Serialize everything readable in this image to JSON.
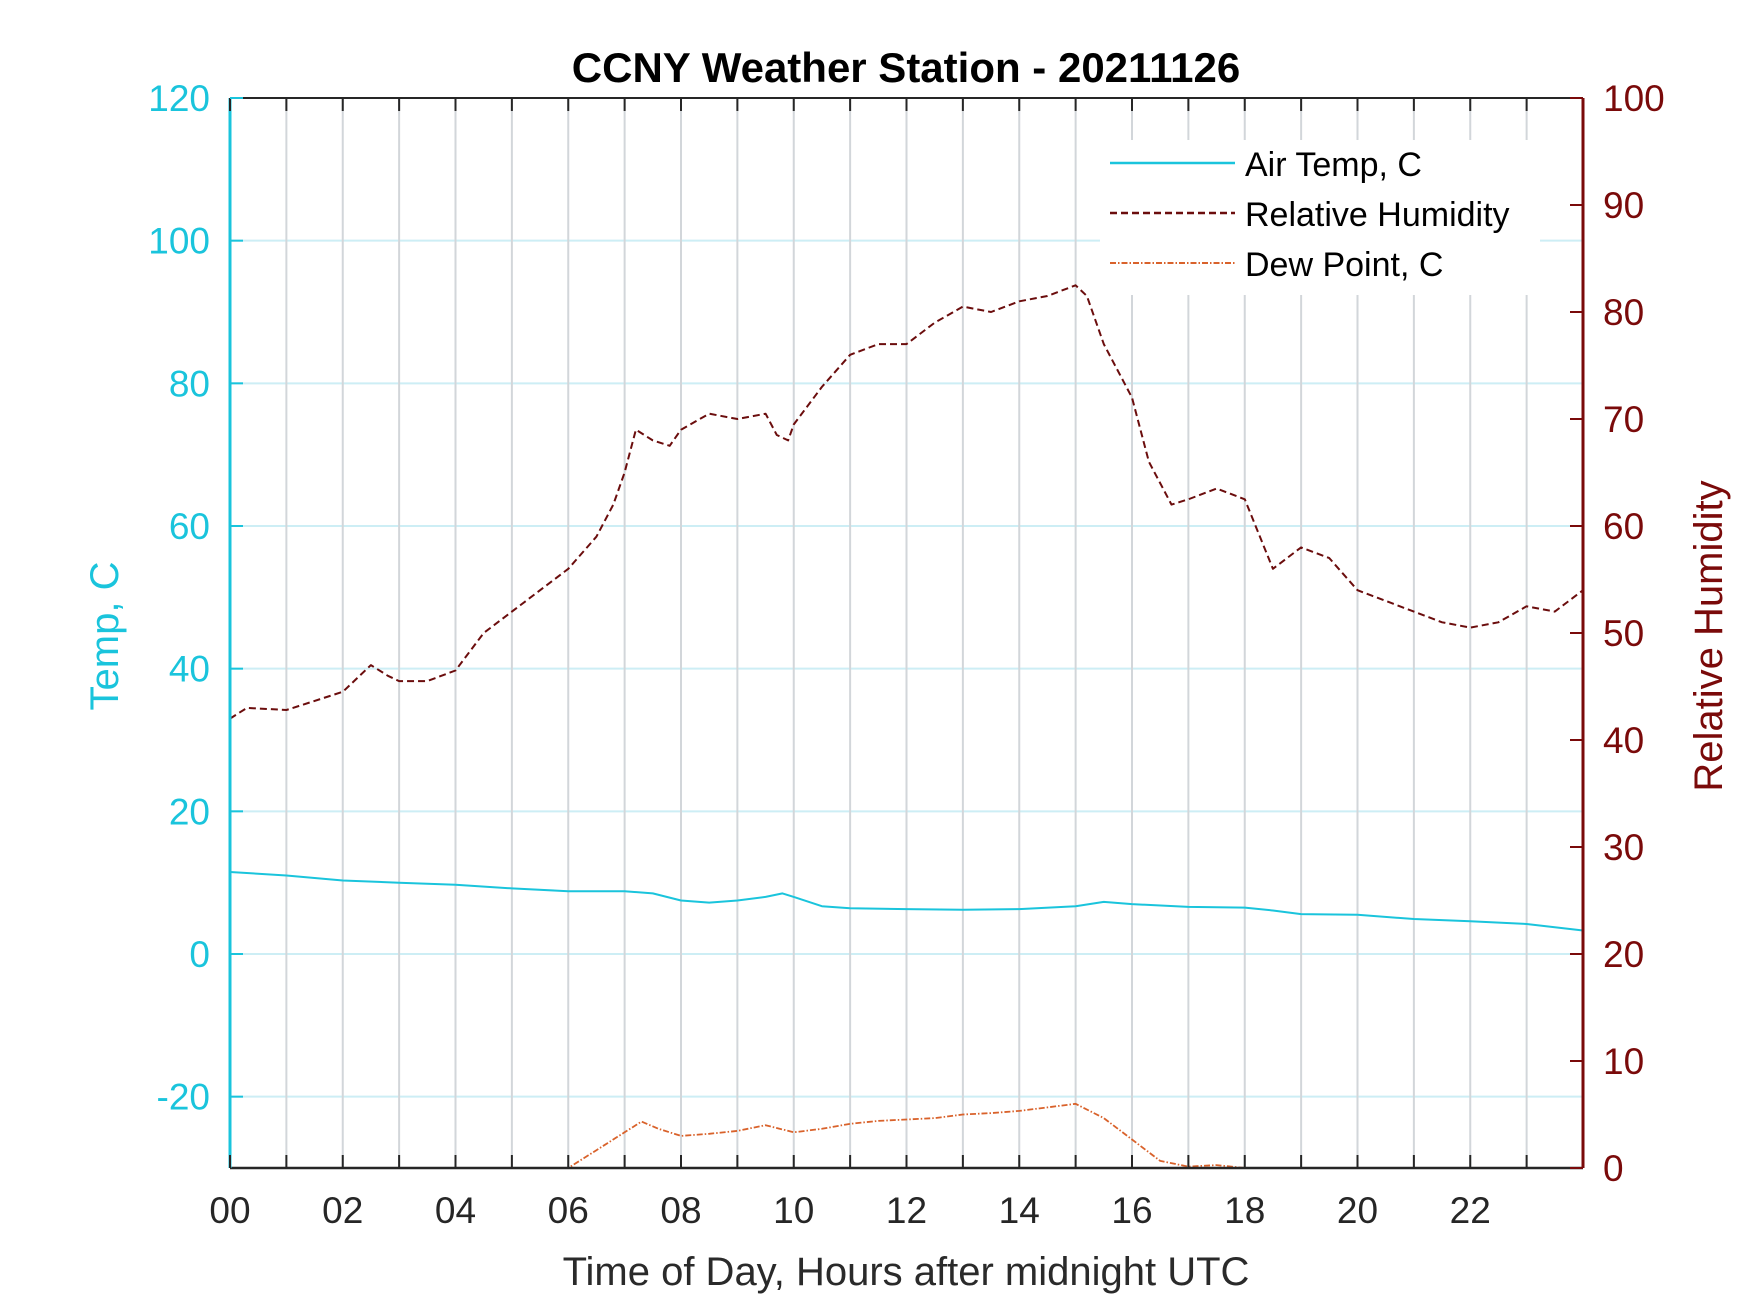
{
  "chart_data": {
    "type": "line",
    "title": "CCNY Weather Station - 20211126",
    "xlabel": "Time of Day, Hours after midnight UTC",
    "ylabel_left": "Temp, C",
    "ylabel_right": "Relative Humidity",
    "xlim": [
      0,
      24
    ],
    "ylim_left": [
      -30,
      120
    ],
    "ylim_right": [
      0,
      100
    ],
    "x_ticks": [
      0,
      2,
      4,
      6,
      8,
      10,
      12,
      14,
      16,
      18,
      20,
      22
    ],
    "x_tick_labels": [
      "00",
      "02",
      "04",
      "06",
      "08",
      "10",
      "12",
      "14",
      "16",
      "18",
      "20",
      "22"
    ],
    "y_ticks_left": [
      -20,
      0,
      20,
      40,
      60,
      80,
      100,
      120
    ],
    "y_tick_labels_left": [
      "-20",
      "0",
      "20",
      "40",
      "60",
      "80",
      "100",
      "120"
    ],
    "y_ticks_right": [
      0,
      10,
      20,
      30,
      40,
      50,
      60,
      70,
      80,
      90,
      100
    ],
    "y_tick_labels_right": [
      "0",
      "10",
      "20",
      "30",
      "40",
      "50",
      "60",
      "70",
      "80",
      "90",
      "100"
    ],
    "grid": "vertical every hour, horizontal at left ticks",
    "legend_position": "top-right",
    "colors": {
      "left_axis": "#1ac4dc",
      "right_axis": "#7a0a0a",
      "air_temp": "#1ac4dc",
      "relative_humidity": "#6b0d0d",
      "dew_point": "#d9622b",
      "grid_vertical": "#d2d6da",
      "grid_horizontal": "#cdeef5"
    },
    "series": [
      {
        "name": "Air Temp, C",
        "axis": "left",
        "style": "solid",
        "points": [
          [
            0,
            11.5
          ],
          [
            1,
            11
          ],
          [
            2,
            10.3
          ],
          [
            3,
            10
          ],
          [
            4,
            9.7
          ],
          [
            5,
            9.2
          ],
          [
            6,
            8.8
          ],
          [
            7,
            8.8
          ],
          [
            7.5,
            8.5
          ],
          [
            8,
            7.5
          ],
          [
            8.5,
            7.2
          ],
          [
            9,
            7.5
          ],
          [
            9.5,
            8
          ],
          [
            9.8,
            8.5
          ],
          [
            10,
            8
          ],
          [
            10.5,
            6.7
          ],
          [
            11,
            6.4
          ],
          [
            12,
            6.3
          ],
          [
            13,
            6.2
          ],
          [
            14,
            6.3
          ],
          [
            15,
            6.7
          ],
          [
            15.5,
            7.3
          ],
          [
            16,
            7
          ],
          [
            17,
            6.6
          ],
          [
            18,
            6.5
          ],
          [
            18.5,
            6.1
          ],
          [
            19,
            5.6
          ],
          [
            20,
            5.5
          ],
          [
            21,
            4.9
          ],
          [
            22,
            4.6
          ],
          [
            23,
            4.2
          ],
          [
            24,
            3.3
          ]
        ]
      },
      {
        "name": "Relative Humidity",
        "axis": "right",
        "style": "dashed",
        "points": [
          [
            0,
            42
          ],
          [
            0.3,
            43
          ],
          [
            1,
            42.8
          ],
          [
            2,
            44.5
          ],
          [
            2.5,
            47
          ],
          [
            2.8,
            46
          ],
          [
            3,
            45.5
          ],
          [
            3.5,
            45.5
          ],
          [
            4,
            46.5
          ],
          [
            4.5,
            50
          ],
          [
            5,
            52
          ],
          [
            5.5,
            54
          ],
          [
            6,
            56
          ],
          [
            6.5,
            59
          ],
          [
            6.8,
            62
          ],
          [
            7,
            65
          ],
          [
            7.2,
            69
          ],
          [
            7.5,
            68
          ],
          [
            7.8,
            67.5
          ],
          [
            8,
            69
          ],
          [
            8.5,
            70.5
          ],
          [
            9,
            70
          ],
          [
            9.5,
            70.5
          ],
          [
            9.7,
            68.5
          ],
          [
            9.9,
            68
          ],
          [
            10,
            69.5
          ],
          [
            10.5,
            73
          ],
          [
            11,
            76
          ],
          [
            11.5,
            77
          ],
          [
            12,
            77
          ],
          [
            12.5,
            79
          ],
          [
            13,
            80.5
          ],
          [
            13.5,
            80
          ],
          [
            14,
            81
          ],
          [
            14.5,
            81.5
          ],
          [
            15,
            82.5
          ],
          [
            15.2,
            81.5
          ],
          [
            15.5,
            77
          ],
          [
            16,
            72
          ],
          [
            16.3,
            66
          ],
          [
            16.7,
            62
          ],
          [
            17,
            62.5
          ],
          [
            17.5,
            63.5
          ],
          [
            18,
            62.5
          ],
          [
            18.5,
            56
          ],
          [
            19,
            58
          ],
          [
            19.5,
            57
          ],
          [
            20,
            54
          ],
          [
            20.5,
            53
          ],
          [
            21,
            52
          ],
          [
            21.5,
            51
          ],
          [
            22,
            50.5
          ],
          [
            22.5,
            51
          ],
          [
            23,
            52.5
          ],
          [
            23.5,
            52
          ],
          [
            24,
            54
          ]
        ]
      },
      {
        "name": "Dew Point, C",
        "axis": "left",
        "style": "dash-dot",
        "points": [
          [
            5.3,
            -30
          ],
          [
            6,
            -30
          ],
          [
            6.5,
            -27.5
          ],
          [
            7,
            -25
          ],
          [
            7.3,
            -23.5
          ],
          [
            7.6,
            -24.5
          ],
          [
            8,
            -25.5
          ],
          [
            8.5,
            -25.2
          ],
          [
            9,
            -24.8
          ],
          [
            9.5,
            -24
          ],
          [
            10,
            -25
          ],
          [
            10.5,
            -24.5
          ],
          [
            11,
            -23.8
          ],
          [
            11.5,
            -23.4
          ],
          [
            12,
            -23.2
          ],
          [
            12.5,
            -23
          ],
          [
            13,
            -22.5
          ],
          [
            13.5,
            -22.3
          ],
          [
            14,
            -22
          ],
          [
            14.5,
            -21.5
          ],
          [
            15,
            -21
          ],
          [
            15.5,
            -23
          ],
          [
            16,
            -26
          ],
          [
            16.5,
            -29
          ],
          [
            17,
            -29.8
          ],
          [
            17.5,
            -29.6
          ],
          [
            18,
            -30
          ]
        ]
      }
    ]
  }
}
